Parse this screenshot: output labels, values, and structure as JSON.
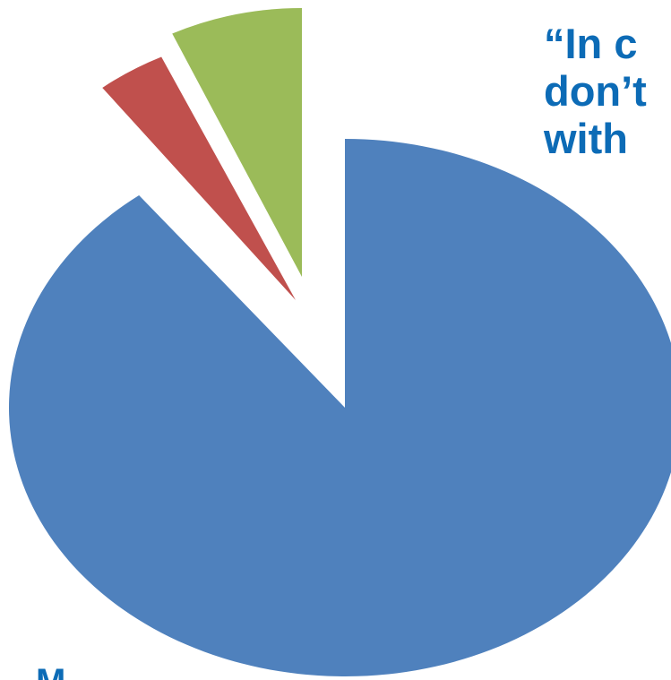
{
  "slide": {
    "quote_lines": [
      "“In c",
      "don’t",
      "with"
    ],
    "bottom_fragment": "M",
    "text_color": "#0c6bb6"
  },
  "chart_data": {
    "type": "pie",
    "title": "",
    "exploded": true,
    "start_angle_deg": 0,
    "direction": "clockwise",
    "series": [
      {
        "slices": [
          {
            "value": 89.5,
            "color": "#4f81bd"
          },
          {
            "value": 3.5,
            "color": "#c0504d"
          },
          {
            "value": 7.0,
            "color": "#9bbb59"
          }
        ]
      }
    ],
    "legend": "none"
  }
}
